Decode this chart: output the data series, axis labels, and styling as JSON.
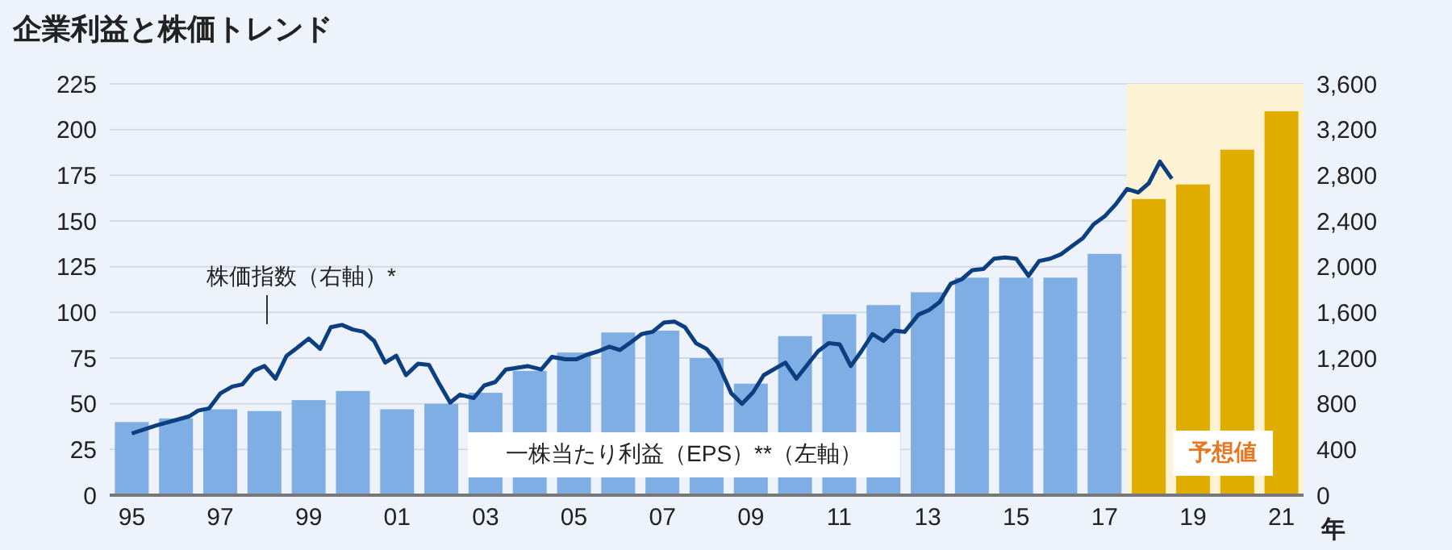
{
  "chart_data": {
    "type": "bar",
    "title": "企業利益と株価トレンド",
    "xlabel": "年",
    "x": [
      1995,
      1996,
      1997,
      1998,
      1999,
      2000,
      2001,
      2002,
      2003,
      2004,
      2005,
      2006,
      2007,
      2008,
      2009,
      2010,
      2011,
      2012,
      2013,
      2014,
      2015,
      2016,
      2017,
      2018,
      2019,
      2020,
      2021
    ],
    "series": [
      {
        "name": "一株当たり利益（EPS）**（左軸）",
        "colors": [
          "#7eaee3",
          "#7eaee3",
          "#7eaee3",
          "#7eaee3",
          "#7eaee3",
          "#7eaee3",
          "#7eaee3",
          "#7eaee3",
          "#7eaee3",
          "#7eaee3",
          "#7eaee3",
          "#7eaee3",
          "#7eaee3",
          "#7eaee3",
          "#7eaee3",
          "#7eaee3",
          "#7eaee3",
          "#7eaee3",
          "#7eaee3",
          "#7eaee3",
          "#7eaee3",
          "#7eaee3",
          "#7eaee3",
          "#e0ac00",
          "#e0ac00",
          "#e0ac00",
          "#e0ac00"
        ],
        "values": [
          40,
          42,
          47,
          46,
          52,
          57,
          47,
          50,
          56,
          68,
          78,
          89,
          90,
          75,
          61,
          87,
          99,
          104,
          111,
          119,
          119,
          119,
          132,
          162,
          170,
          189,
          210
        ]
      },
      {
        "type": "line",
        "name": "株価指数（右軸）*",
        "axis": "y2",
        "color": "#0b3f7f",
        "x": [
          1995.0,
          1995.55,
          1996.3,
          1996.5,
          1996.75,
          1997.0,
          1997.27,
          1997.5,
          1997.76,
          1998.0,
          1998.25,
          1998.5,
          1998.74,
          1999.0,
          1999.26,
          1999.5,
          1999.75,
          2000.0,
          2000.24,
          2000.48,
          2000.73,
          2000.98,
          2001.2,
          2001.47,
          2001.72,
          2001.96,
          2002.2,
          2002.42,
          2002.73,
          2002.97,
          2003.22,
          2003.46,
          2003.95,
          2004.26,
          2004.5,
          2004.81,
          2005.06,
          2005.3,
          2005.55,
          2005.8,
          2006.04,
          2006.29,
          2006.53,
          2006.78,
          2007.03,
          2007.27,
          2007.51,
          2007.76,
          2008.0,
          2008.25,
          2008.56,
          2008.8,
          2009.05,
          2009.29,
          2009.78,
          2010.03,
          2010.52,
          2010.76,
          2011.01,
          2011.26,
          2011.5,
          2011.75,
          2012.0,
          2012.24,
          2012.48,
          2012.79,
          2013.03,
          2013.27,
          2013.52,
          2013.77,
          2014.01,
          2014.26,
          2014.5,
          2014.75,
          2015.0,
          2015.28,
          2015.52,
          2015.77,
          2016.02,
          2016.26,
          2016.51,
          2016.75,
          2017.0,
          2017.24,
          2017.51,
          2017.76,
          2018.0,
          2018.25,
          2018.52
        ],
        "values": [
          540,
          610,
          690,
          740,
          760,
          890,
          950,
          970,
          1090,
          1130,
          1020,
          1220,
          1290,
          1370,
          1280,
          1470,
          1490,
          1450,
          1430,
          1350,
          1160,
          1220,
          1050,
          1150,
          1140,
          970,
          810,
          880,
          850,
          960,
          990,
          1100,
          1130,
          1100,
          1210,
          1190,
          1190,
          1230,
          1260,
          1300,
          1270,
          1340,
          1410,
          1430,
          1510,
          1520,
          1470,
          1330,
          1280,
          1160,
          890,
          800,
          900,
          1050,
          1160,
          1020,
          1260,
          1330,
          1320,
          1130,
          1260,
          1410,
          1350,
          1440,
          1430,
          1580,
          1620,
          1690,
          1850,
          1890,
          1970,
          1980,
          2070,
          2080,
          2070,
          1920,
          2050,
          2070,
          2110,
          2180,
          2250,
          2370,
          2440,
          2540,
          2680,
          2650,
          2730,
          2920,
          2770
        ]
      }
    ],
    "xlim": [
      1994.5,
      2021.5
    ],
    "xticks": [
      {
        "value": 1995,
        "label": "95"
      },
      {
        "value": 1997,
        "label": "97"
      },
      {
        "value": 1999,
        "label": "99"
      },
      {
        "value": 2001,
        "label": "01"
      },
      {
        "value": 2003,
        "label": "03"
      },
      {
        "value": 2005,
        "label": "05"
      },
      {
        "value": 2007,
        "label": "07"
      },
      {
        "value": 2009,
        "label": "09"
      },
      {
        "value": 2011,
        "label": "11"
      },
      {
        "value": 2013,
        "label": "13"
      },
      {
        "value": 2015,
        "label": "15"
      },
      {
        "value": 2017,
        "label": "17"
      },
      {
        "value": 2019,
        "label": "19"
      },
      {
        "value": 2021,
        "label": "21"
      }
    ],
    "ylim": [
      0,
      225
    ],
    "yticks": [
      0,
      25,
      50,
      75,
      100,
      125,
      150,
      175,
      200,
      225
    ],
    "y2lim": [
      0,
      3600
    ],
    "y2ticks": [
      0,
      400,
      800,
      {
        "value": 1200,
        "label": "1,200"
      },
      {
        "value": 1600,
        "label": "1,600"
      },
      {
        "value": 2000,
        "label": "2,000"
      },
      {
        "value": 2400,
        "label": "2,400"
      },
      {
        "value": 2800,
        "label": "2,800"
      },
      {
        "value": 3200,
        "label": "3,200"
      },
      {
        "value": 3600,
        "label": "3,600"
      }
    ],
    "bands": [
      {
        "axis": "x",
        "from": 2017.5,
        "to": 2021.5,
        "label": "予想値",
        "color": "#fdf3d4"
      }
    ],
    "grid": "y",
    "legend": false,
    "marker": "none",
    "line_style": "solid"
  }
}
